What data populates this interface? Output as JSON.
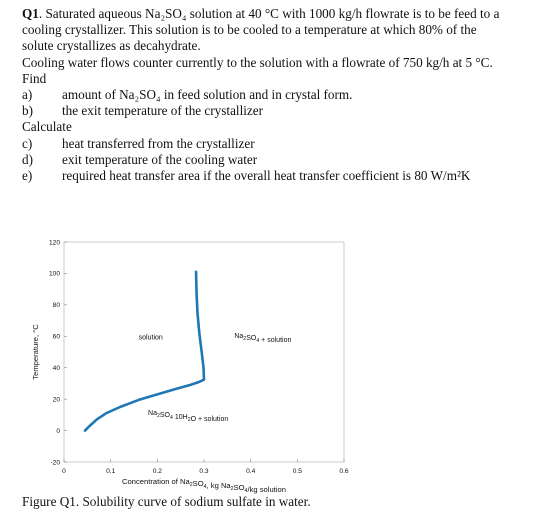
{
  "question": {
    "line1_bold": "Q1",
    "line1_rest": ". Saturated aqueous Na₂SO₄ solution at 40 °C with 1000 kg/h flowrate is to be feed to a",
    "line2": "cooling crystallizer. This solution is to be cooled to a temperature at which 80% of the",
    "line3": "solute crystallizes as decahydrate.",
    "line4": "Cooling water flows counter currently to the solution with a flowrate of 750 kg/h at 5 °C.",
    "find_label": "Find",
    "find_items": [
      {
        "label": "a)",
        "text": "amount of Na₂SO₄ in feed solution and in crystal form."
      },
      {
        "label": "b)",
        "text": "the exit temperature of the crystallizer"
      }
    ],
    "calc_label": "Calculate",
    "calc_items": [
      {
        "label": "c)",
        "text": "heat transferred from the crystallizer"
      },
      {
        "label": "d)",
        "text": "exit temperature of the cooling water"
      },
      {
        "label": "e)",
        "text": "required heat transfer area if the overall heat transfer coefficient is 80 W/m²K"
      }
    ]
  },
  "caption": "Figure Q1. Solubility curve of sodium sulfate in water.",
  "chart_data": {
    "type": "line",
    "title": "",
    "xlabel": "Concentration of Na₂SO₄, kg Na₂SO₄/kg solution",
    "ylabel": "Temperature, °C",
    "xlim": [
      0,
      0.6
    ],
    "ylim": [
      -20,
      120
    ],
    "x_ticks": [
      "0",
      "0.1",
      "0.2",
      "0.3",
      "0.4",
      "0.5",
      "0.6"
    ],
    "y_ticks": [
      "-20",
      "0",
      "20",
      "40",
      "60",
      "80",
      "100",
      "120"
    ],
    "grid": false,
    "line_color": "#1f77b4",
    "series": [
      {
        "x": [
          0.045,
          0.055,
          0.07,
          0.09,
          0.12,
          0.16,
          0.2,
          0.24,
          0.27,
          0.29,
          0.3,
          0.3,
          0.299,
          0.295,
          0.29,
          0.286,
          0.284,
          0.283
        ],
        "y": [
          0,
          3,
          7,
          11,
          15,
          19.5,
          23,
          26.5,
          29,
          31,
          32.4,
          32.4,
          40,
          50,
          62,
          75,
          88,
          101
        ]
      }
    ],
    "annotations": [
      {
        "text": "solution",
        "x": 0.16,
        "y": 58
      },
      {
        "text": "Na₂SO₄ + solution",
        "x": 0.365,
        "y": 59
      },
      {
        "text": "Na₂SO₄·10H₂O + solution",
        "x": 0.18,
        "y": 10
      }
    ],
    "annotation_text": {
      "solution": "solution",
      "region2": "Na₂SO₄ + solution",
      "region3": "Na₂SO₄ 10H₂O + solution"
    }
  }
}
